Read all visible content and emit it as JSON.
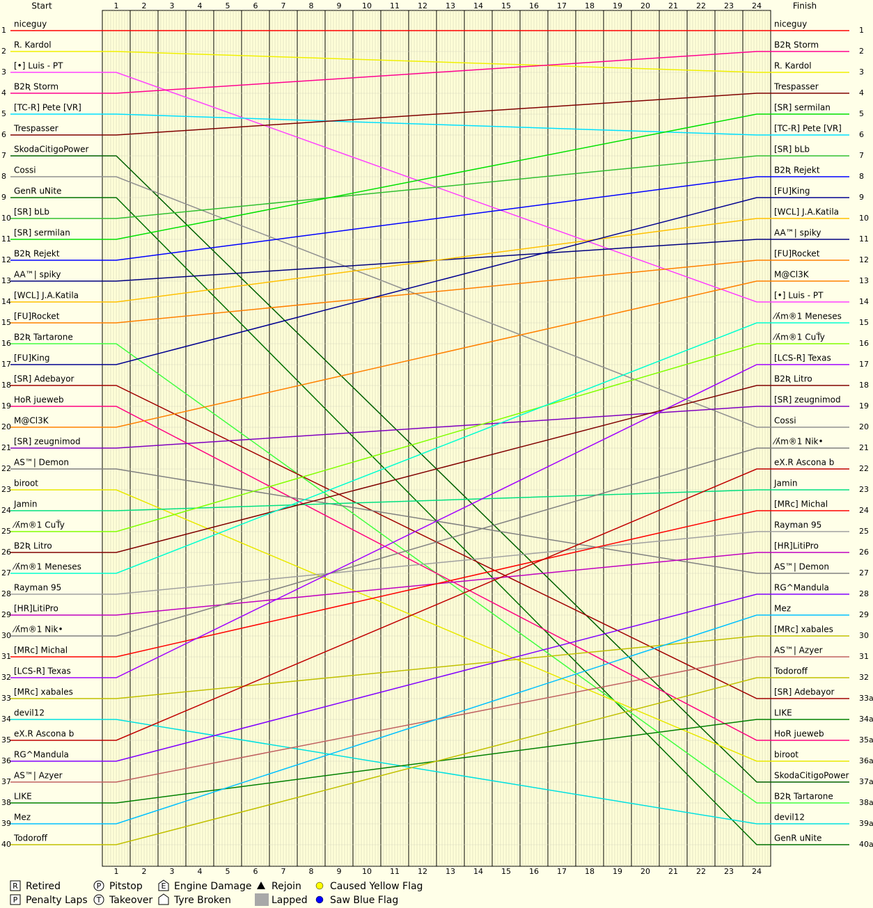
{
  "header": {
    "start": "Start",
    "finish": "Finish"
  },
  "laps": [
    1,
    2,
    3,
    4,
    5,
    6,
    7,
    8,
    9,
    10,
    11,
    12,
    13,
    14,
    15,
    16,
    17,
    18,
    19,
    20,
    21,
    22,
    23,
    24
  ],
  "positions": [
    1,
    2,
    3,
    4,
    5,
    6,
    7,
    8,
    9,
    10,
    11,
    12,
    13,
    14,
    15,
    16,
    17,
    18,
    19,
    20,
    21,
    22,
    23,
    24,
    25,
    26,
    27,
    28,
    29,
    30,
    31,
    32,
    33,
    34,
    35,
    36,
    37,
    38,
    39,
    40
  ],
  "right_positions": [
    1,
    2,
    3,
    4,
    5,
    6,
    7,
    8,
    9,
    10,
    11,
    12,
    13,
    14,
    15,
    16,
    17,
    18,
    19,
    20,
    21,
    22,
    23,
    24,
    25,
    26,
    27,
    28,
    29,
    30,
    31,
    32,
    "33a",
    "34a",
    "35a",
    "36a",
    "37a",
    "38a",
    "39a",
    "40a"
  ],
  "start_names": [
    "niceguy",
    "R. Kardol",
    "[•] Luis - PT",
    "B2Ʀ Storm",
    "[TC-R] Pete [VR]",
    "Trespasser",
    "SkodaCitigoPower",
    "Cossi",
    "GenR uNite",
    "[SR] bLb",
    "[SR] sermilan",
    "B2Ʀ Rejekt",
    "AA™| spiky",
    "[WCL] J.A.Katila",
    "[FU]Rocket",
    "B2Ʀ Tartarone",
    "[FU]King",
    "[SR] Adebayor",
    "HoR jueweb",
    "M@Cl3K",
    "[SR] zeugnimod",
    "AS™| Demon",
    "biroot",
    "Jamin",
    "⁄ʎm®1 CuŤy",
    "B2Ʀ Litro",
    "⁄ʎm®1 Meneses",
    "Rayman 95",
    "[HR]LitiPro",
    "⁄ʎm®1 Nik•",
    "[MRc] Michal",
    "[LCS-R] Texas",
    "[MRc] xabales",
    "devil12",
    "eX.R Ascona b",
    "RG^Mandula",
    "AS™| Azyer",
    "LIKE",
    "Mez",
    "Todoroff"
  ],
  "finish_names": [
    "niceguy",
    "B2Ʀ Storm",
    "R. Kardol",
    "Trespasser",
    "[SR] sermilan",
    "[TC-R] Pete [VR]",
    "[SR] bLb",
    "B2Ʀ Rejekt",
    "[FU]King",
    "[WCL] J.A.Katila",
    "AA™| spiky",
    "[FU]Rocket",
    "M@Cl3K",
    "[•] Luis - PT",
    "⁄ʎm®1 Meneses",
    "⁄ʎm®1 CuŤy",
    "[LCS-R] Texas",
    "B2Ʀ Litro",
    "[SR] zeugnimod",
    "Cossi",
    "⁄ʎm®1 Nik•",
    "eX.R Ascona b",
    "Jamin",
    "[MRc] Michal",
    "Rayman 95",
    "[HR]LitiPro",
    "AS™| Demon",
    "RG^Mandula",
    "Mez",
    "[MRc] xabales",
    "AS™| Azyer",
    "Todoroff",
    "[SR] Adebayor",
    "LIKE",
    "HoR jueweb",
    "biroot",
    "SkodaCitigoPower",
    "B2Ʀ Tartarone",
    "devil12",
    "GenR uNite"
  ],
  "colors": [
    "#ff0000",
    "#f0f000",
    "#ff40ff",
    "#ff0090",
    "#00e0ff",
    "#800000",
    "#006000",
    "#909090",
    "#007000",
    "#30c030",
    "#00e000",
    "#0000ff",
    "#000080",
    "#ffc000",
    "#ff8000",
    "#40ff40",
    "#000090",
    "#a00000",
    "#ff0080",
    "#ff8000",
    "#8000c0",
    "#808080",
    "#e8e800",
    "#00e080",
    "#80ff00",
    "#800000",
    "#00ffd0",
    "#a0a0a0",
    "#c000c0",
    "#808080",
    "#ff0000",
    "#a000ff",
    "#c0c000",
    "#00e0e0",
    "#c00000",
    "#8000ff",
    "#c06060",
    "#008000",
    "#00c0ff",
    "#c0c000"
  ],
  "legend": [
    {
      "icon": "R",
      "label": "Retired",
      "shape": "square"
    },
    {
      "icon": "P",
      "label": "Penalty Laps",
      "shape": "square"
    },
    {
      "icon": "P",
      "label": "Pitstop",
      "shape": "circle"
    },
    {
      "icon": "T",
      "label": "Takeover",
      "shape": "circle"
    },
    {
      "icon": "E",
      "label": "Engine Damage",
      "shape": "pentagon"
    },
    {
      "label": "Tyre Broken",
      "shape": "pentagon"
    },
    {
      "label": "Rejoin",
      "shape": "triangle"
    },
    {
      "label": "Lapped",
      "shape": "rect",
      "color": "#a8a8a8"
    },
    {
      "label": "Caused Yellow Flag",
      "shape": "dot",
      "color": "#ffff00"
    },
    {
      "label": "Saw Blue Flag",
      "shape": "dot",
      "color": "#0000ff"
    }
  ]
}
